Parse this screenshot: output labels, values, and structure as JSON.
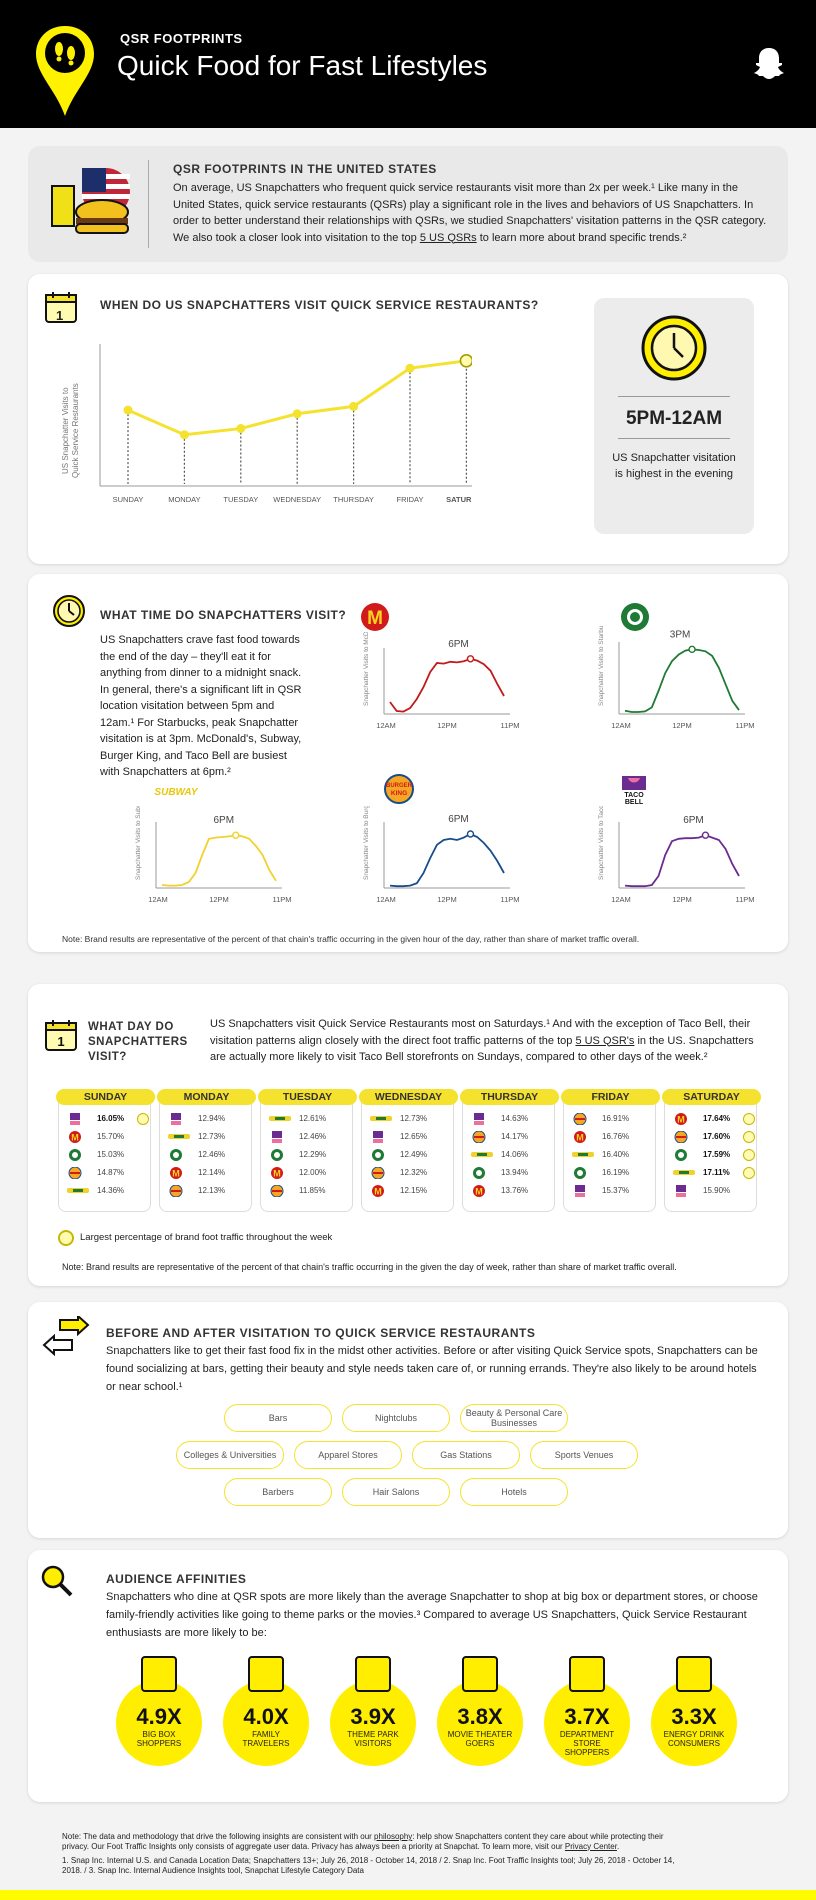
{
  "header": {
    "kicker": "QSR FOOTPRINTS",
    "title": "Quick Food for Fast Lifestyles"
  },
  "intro": {
    "heading": "QSR FOOTPRINTS IN THE UNITED STATES",
    "text": "On average, US Snapchatters who frequent quick service restaurants visit more than 2x per week.¹ Like many in the United States, quick service restaurants (QSRs) play a significant role in the lives and behaviors of US Snapchatters. In order to better understand their relationships with QSRs, we studied Snapchatters' visitation patterns in the QSR category. We also took a closer look into visitation to the top ",
    "link": "5 US QSRs",
    "text_end": " to learn more about brand specific trends.²"
  },
  "when": {
    "heading": "WHEN DO US SNAPCHATTERS VISIT QUICK SERVICE RESTAURANTS?",
    "ylabel1": "US Snapchatter Visits to",
    "ylabel2": "Quick Service Restaurants",
    "time": "5PM-12AM",
    "caption": "US Snapchatter visitation is highest in the evening",
    "calendar": "1"
  },
  "chart_data": [
    {
      "type": "line",
      "categories": [
        "SUNDAY",
        "MONDAY",
        "TUESDAY",
        "WEDNESDAY",
        "THURSDAY",
        "FRIDAY",
        "SATURDAY"
      ],
      "values": [
        0.6,
        0.4,
        0.45,
        0.57,
        0.63,
        0.94,
        1.0
      ],
      "ylabel": "US Snapchatter Visits to Quick Service Restaurants",
      "highlight": "SATURDAY"
    },
    {
      "type": "line",
      "brand": "McDonald's",
      "peak_label": "6PM",
      "ylabel": "Snapchatter Visits to McDonald's",
      "xticks": [
        "12AM",
        "12PM",
        "11PM"
      ],
      "color": "#c21a1a",
      "values": [
        0.2,
        0.05,
        0.04,
        0.1,
        0.25,
        0.45,
        0.7,
        0.85,
        0.84,
        0.87,
        0.86,
        0.88,
        0.92,
        0.89,
        0.83,
        0.72,
        0.5,
        0.3
      ]
    },
    {
      "type": "line",
      "brand": "Starbucks",
      "peak_label": "3PM",
      "ylabel": "Snapchatter Visits to Starbucks",
      "xticks": [
        "12AM",
        "12PM",
        "11PM"
      ],
      "color": "#1e7a34",
      "values": [
        0.05,
        0.03,
        0.03,
        0.04,
        0.1,
        0.35,
        0.62,
        0.8,
        0.9,
        0.96,
        0.98,
        0.97,
        0.95,
        0.88,
        0.7,
        0.45,
        0.2,
        0.06
      ]
    },
    {
      "type": "line",
      "brand": "Subway",
      "peak_label": "6PM",
      "ylabel": "Snapchatter Visits to Subway",
      "xticks": [
        "12AM",
        "12PM",
        "11PM"
      ],
      "color": "#f1d22d",
      "values": [
        0.05,
        0.04,
        0.04,
        0.05,
        0.1,
        0.25,
        0.55,
        0.82,
        0.84,
        0.85,
        0.86,
        0.88,
        0.86,
        0.82,
        0.7,
        0.55,
        0.3,
        0.12
      ]
    },
    {
      "type": "line",
      "brand": "Burger King",
      "peak_label": "6PM",
      "ylabel": "Snapchatter Visits to Burger King",
      "xticks": [
        "12AM",
        "12PM",
        "11PM"
      ],
      "color": "#1a4c8a",
      "values": [
        0.04,
        0.03,
        0.03,
        0.04,
        0.08,
        0.25,
        0.5,
        0.72,
        0.8,
        0.82,
        0.8,
        0.84,
        0.9,
        0.85,
        0.75,
        0.62,
        0.45,
        0.25
      ]
    },
    {
      "type": "line",
      "brand": "Taco Bell",
      "peak_label": "6PM",
      "ylabel": "Snapchatter Visits to Taco Bell",
      "xticks": [
        "12AM",
        "12PM",
        "11PM"
      ],
      "color": "#6b2c91",
      "values": [
        0.04,
        0.03,
        0.03,
        0.03,
        0.05,
        0.2,
        0.55,
        0.78,
        0.82,
        0.83,
        0.83,
        0.84,
        0.88,
        0.84,
        0.8,
        0.65,
        0.4,
        0.2
      ]
    }
  ],
  "time": {
    "heading": "WHAT TIME DO SNAPCHATTERS VISIT?",
    "text": "US Snapchatters crave fast food towards the end of the day – they'll eat it for anything from dinner to a midnight snack. In general, there's a significant lift in QSR location visitation between 5pm and 12am.¹ For Starbucks, peak Snapchatter visitation is at 3pm. McDonald's, Subway, Burger King, and Taco Bell are busiest with Snapchatters at 6pm.²",
    "note": "Note: Brand results are representative of the percent of that chain's traffic occurring in the given hour of the day, rather than share of market traffic overall.",
    "logos": {
      "subway": "SUBWAY",
      "bk1": "BURGER",
      "bk2": "KING",
      "tb1": "TACO",
      "tb2": "BELL"
    }
  },
  "day": {
    "heading_l1": "WHAT DAY DO",
    "heading_l2": "SNAPCHATTERS",
    "heading_l3": "VISIT?",
    "text": "US Snapchatters visit Quick Service Restaurants most on Saturdays.¹ And with the exception of Taco Bell, their visitation patterns align closely with the direct foot traffic patterns of the top ",
    "link": "5 US QSR's",
    "text_end": " in the US. Snapchatters are actually more likely to visit Taco Bell storefronts on Sundays, compared to other days of the week.²",
    "legend": "Largest percentage of brand foot traffic throughout the week",
    "note": "Note: Brand results are representative of the percent of that chain's traffic occurring in the given the day of week, rather than share of market traffic overall.",
    "columns": [
      {
        "name": "SUNDAY",
        "rows": [
          {
            "brand": "tacobell",
            "pct": "16.05%",
            "bold": true,
            "check": true
          },
          {
            "brand": "mcdonalds",
            "pct": "15.70%"
          },
          {
            "brand": "starbucks",
            "pct": "15.03%"
          },
          {
            "brand": "burgerking",
            "pct": "14.87%"
          },
          {
            "brand": "subway",
            "pct": "14.36%"
          }
        ]
      },
      {
        "name": "MONDAY",
        "rows": [
          {
            "brand": "tacobell",
            "pct": "12.94%"
          },
          {
            "brand": "subway",
            "pct": "12.73%"
          },
          {
            "brand": "starbucks",
            "pct": "12.46%"
          },
          {
            "brand": "mcdonalds",
            "pct": "12.14%"
          },
          {
            "brand": "burgerking",
            "pct": "12.13%"
          }
        ]
      },
      {
        "name": "TUESDAY",
        "rows": [
          {
            "brand": "subway",
            "pct": "12.61%"
          },
          {
            "brand": "tacobell",
            "pct": "12.46%"
          },
          {
            "brand": "starbucks",
            "pct": "12.29%"
          },
          {
            "brand": "mcdonalds",
            "pct": "12.00%"
          },
          {
            "brand": "burgerking",
            "pct": "11.85%"
          }
        ]
      },
      {
        "name": "WEDNESDAY",
        "rows": [
          {
            "brand": "subway",
            "pct": "12.73%"
          },
          {
            "brand": "tacobell",
            "pct": "12.65%"
          },
          {
            "brand": "starbucks",
            "pct": "12.49%"
          },
          {
            "brand": "burgerking",
            "pct": "12.32%"
          },
          {
            "brand": "mcdonalds",
            "pct": "12.15%"
          }
        ]
      },
      {
        "name": "THURSDAY",
        "rows": [
          {
            "brand": "tacobell",
            "pct": "14.63%"
          },
          {
            "brand": "burgerking",
            "pct": "14.17%"
          },
          {
            "brand": "subway",
            "pct": "14.06%"
          },
          {
            "brand": "starbucks",
            "pct": "13.94%"
          },
          {
            "brand": "mcdonalds",
            "pct": "13.76%"
          }
        ]
      },
      {
        "name": "FRIDAY",
        "rows": [
          {
            "brand": "burgerking",
            "pct": "16.91%"
          },
          {
            "brand": "mcdonalds",
            "pct": "16.76%"
          },
          {
            "brand": "subway",
            "pct": "16.40%"
          },
          {
            "brand": "starbucks",
            "pct": "16.19%"
          },
          {
            "brand": "tacobell",
            "pct": "15.37%"
          }
        ]
      },
      {
        "name": "SATURDAY",
        "rows": [
          {
            "brand": "mcdonalds",
            "pct": "17.64%",
            "bold": true,
            "check": true
          },
          {
            "brand": "burgerking",
            "pct": "17.60%",
            "bold": true,
            "check": true
          },
          {
            "brand": "starbucks",
            "pct": "17.59%",
            "bold": true,
            "check": true
          },
          {
            "brand": "subway",
            "pct": "17.11%",
            "bold": true,
            "check": true
          },
          {
            "brand": "tacobell",
            "pct": "15.90%"
          }
        ]
      }
    ]
  },
  "before": {
    "heading": "BEFORE AND AFTER VISITATION TO QUICK SERVICE RESTAURANTS",
    "text": "Snapchatters like to get their fast food fix in the midst other activities. Before or after visiting Quick Service spots, Snapchatters can be found socializing at bars, getting their beauty and style needs taken care of, or running errands. They're also likely to be around hotels or near school.¹",
    "pills": [
      [
        "Bars",
        "Nightclubs",
        "Beauty & Personal Care Businesses"
      ],
      [
        "Colleges & Universities",
        "Apparel Stores",
        "Gas Stations",
        "Sports Venues"
      ],
      [
        "Barbers",
        "Hair Salons",
        "Hotels"
      ]
    ]
  },
  "affinities": {
    "heading": "AUDIENCE AFFINITIES",
    "text": "Snapchatters who dine at QSR spots are more likely than the average Snapchatter to shop at big box or department stores, or choose family-friendly activities like going to theme parks or the movies.³ Compared to average US Snapchatters, Quick Service Restaurant enthusiasts are more likely to be:",
    "items": [
      {
        "value": "4.9X",
        "label": "BIG BOX SHOPPERS"
      },
      {
        "value": "4.0X",
        "label": "FAMILY TRAVELERS"
      },
      {
        "value": "3.9X",
        "label": "THEME PARK VISITORS"
      },
      {
        "value": "3.8X",
        "label": "MOVIE THEATER GOERS"
      },
      {
        "value": "3.7X",
        "label": "DEPARTMENT STORE SHOPPERS"
      },
      {
        "value": "3.3X",
        "label": "ENERGY DRINK CONSUMERS"
      }
    ]
  },
  "footer": {
    "note_a": "Note: The data and methodology that drive the following insights are consistent with our ",
    "link1": "philosophy",
    "note_b": ": help show Snapchatters content they care about while protecting their privacy. Our Foot Traffic Insights only consists of aggregate user data. Privacy has always been a priority at Snapchat. To learn more, visit our ",
    "link2": "Privacy Center",
    "note_c": ".",
    "sources": "1. Snap Inc. Internal U.S. and Canada Location Data; Snapchatters 13+; July 26, 2018 - October 14, 2018 / 2. Snap Inc. Foot Traffic Insights tool; July 26, 2018 - October 14, 2018. / 3. Snap Inc. Internal Audience Insights tool, Snapchat Lifestyle Category Data"
  },
  "colors": {
    "accent": "#fffc00",
    "yellow": "#f5e22e",
    "black": "#000000"
  }
}
